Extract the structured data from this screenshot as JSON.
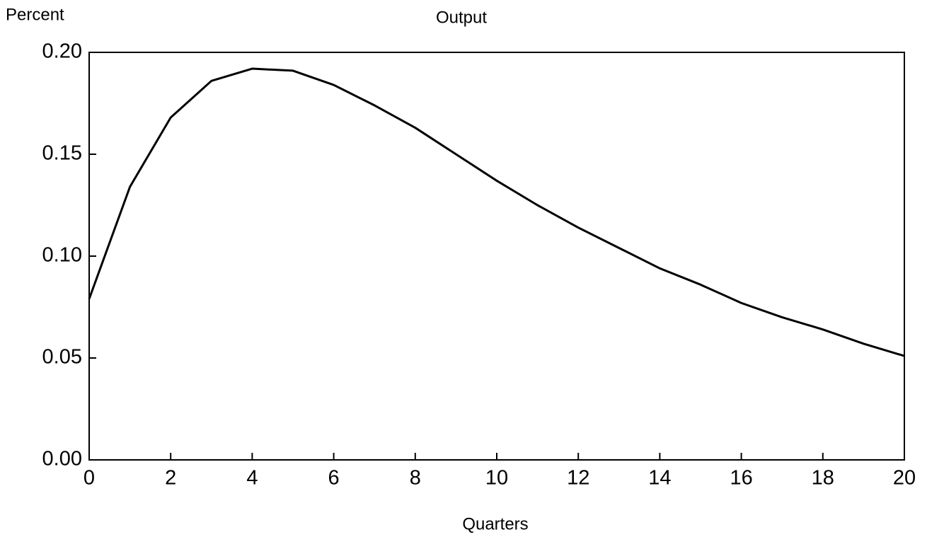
{
  "chart_data": {
    "type": "line",
    "title": "Output",
    "y_label": "Percent",
    "x_label": "Quarters",
    "x": [
      0,
      1,
      2,
      3,
      4,
      5,
      6,
      7,
      8,
      9,
      10,
      11,
      12,
      13,
      14,
      15,
      16,
      17,
      18,
      19,
      20
    ],
    "series": [
      {
        "color": "#000000",
        "values": [
          0.079,
          0.134,
          0.168,
          0.186,
          0.192,
          0.191,
          0.184,
          0.174,
          0.163,
          0.15,
          0.137,
          0.125,
          0.114,
          0.104,
          0.094,
          0.086,
          0.077,
          0.07,
          0.064,
          0.057,
          0.051
        ]
      }
    ],
    "xlim": [
      0,
      20
    ],
    "xticks": [
      0,
      2,
      4,
      6,
      8,
      10,
      12,
      14,
      16,
      18,
      20
    ],
    "ylim": [
      0,
      0.2
    ],
    "yticks": [
      {
        "value": 0,
        "label": "0.00"
      },
      0.05,
      {
        "value": 0.1,
        "label": "0.10"
      },
      0.15,
      {
        "value": 0.2,
        "label": "0.20"
      }
    ],
    "grid": false
  }
}
